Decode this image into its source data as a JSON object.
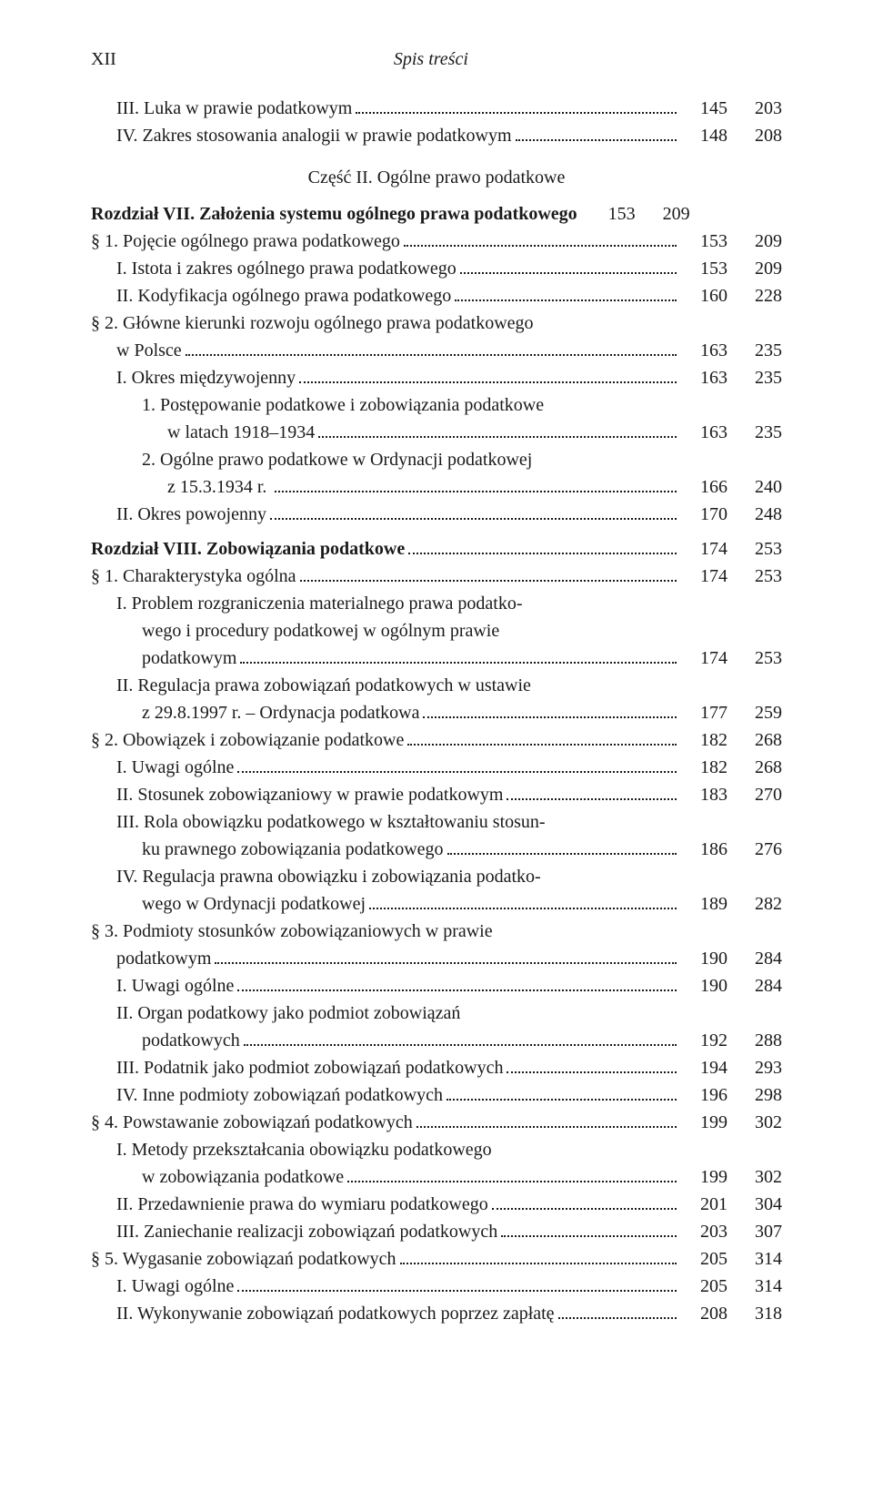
{
  "header": {
    "page_num": "XII",
    "running": "Spis treści"
  },
  "intro": [
    {
      "label": "III. Luka w prawie podatkowym",
      "a": "145",
      "b": "203",
      "indent": "indent-1"
    },
    {
      "label": "IV. Zakres stosowania analogii w prawie podatkowym",
      "a": "148",
      "b": "208",
      "indent": "indent-1"
    }
  ],
  "part_title": "Część II. Ogólne prawo podatkowe",
  "chapters": [
    {
      "heading": {
        "label": "Rozdział VII. Założenia systemu ogólnego prawa podatkowego",
        "a": "153",
        "b": "209"
      },
      "rows": [
        {
          "label": "§ 1. Pojęcie ogólnego prawa podatkowego",
          "a": "153",
          "b": "209",
          "indent": "indent-0",
          "dots": true
        },
        {
          "label": "I. Istota i zakres ogólnego prawa podatkowego",
          "a": "153",
          "b": "209",
          "indent": "indent-1",
          "dots": true
        },
        {
          "label": "II. Kodyfikacja ogólnego prawa podatkowego",
          "a": "160",
          "b": "228",
          "indent": "indent-1",
          "dots": true
        },
        {
          "label": "§ 2. Główne kierunki rozwoju ogólnego prawa podatkowego",
          "indent": "indent-0",
          "dots": false,
          "no_cols": true
        },
        {
          "label": "w Polsce",
          "a": "163",
          "b": "235",
          "indent": "cont-1",
          "dots": true
        },
        {
          "label": "I. Okres międzywojenny",
          "a": "163",
          "b": "235",
          "indent": "indent-1",
          "dots": true
        },
        {
          "label": "1. Postępowanie podatkowe i zobowiązania podatkowe",
          "indent": "indent-2",
          "dots": false,
          "no_cols": true
        },
        {
          "label": "w latach 1918–1934",
          "a": "163",
          "b": "235",
          "indent": "cont-3",
          "dots": true
        },
        {
          "label": "2. Ogólne prawo podatkowe w Ordynacji podatkowej",
          "indent": "indent-2",
          "dots": false,
          "no_cols": true
        },
        {
          "label": "z 15.3.1934 r. ",
          "a": "166",
          "b": "240",
          "indent": "cont-3",
          "dots": true
        },
        {
          "label": "II. Okres powojenny",
          "a": "170",
          "b": "248",
          "indent": "indent-1",
          "dots": true
        }
      ]
    },
    {
      "heading": {
        "label": "Rozdział VIII. Zobowiązania podatkowe",
        "a": "174",
        "b": "253",
        "dots": true
      },
      "rows": [
        {
          "label": "§ 1. Charakterystyka ogólna",
          "a": "174",
          "b": "253",
          "indent": "indent-0",
          "dots": true
        },
        {
          "label": "I. Problem rozgraniczenia materialnego prawa podatko-",
          "indent": "indent-1",
          "dots": false,
          "no_cols": true
        },
        {
          "label": "wego i procedury podatkowej w ogólnym prawie",
          "indent": "cont-2",
          "dots": false,
          "no_cols": true
        },
        {
          "label": "podatkowym",
          "a": "174",
          "b": "253",
          "indent": "cont-2",
          "dots": true
        },
        {
          "label": "II. Regulacja prawa zobowiązań podatkowych w ustawie",
          "indent": "indent-1",
          "dots": false,
          "no_cols": true
        },
        {
          "label": "z 29.8.1997 r. – Ordynacja podatkowa",
          "a": "177",
          "b": "259",
          "indent": "cont-2",
          "dots": true
        },
        {
          "label": "§ 2. Obowiązek i zobowiązanie podatkowe",
          "a": "182",
          "b": "268",
          "indent": "indent-0",
          "dots": true
        },
        {
          "label": "I. Uwagi ogólne",
          "a": "182",
          "b": "268",
          "indent": "indent-1",
          "dots": true
        },
        {
          "label": "II. Stosunek zobowiązaniowy w prawie podatkowym",
          "a": "183",
          "b": "270",
          "indent": "indent-1",
          "dots": true
        },
        {
          "label": "III. Rola obowiązku podatkowego w kształtowaniu stosun-",
          "indent": "indent-1",
          "dots": false,
          "no_cols": true
        },
        {
          "label": "ku prawnego zobowiązania podatkowego",
          "a": "186",
          "b": "276",
          "indent": "cont-2",
          "dots": true
        },
        {
          "label": "IV. Regulacja prawna obowiązku i zobowiązania podatko-",
          "indent": "indent-1",
          "dots": false,
          "no_cols": true
        },
        {
          "label": "wego w Ordynacji podatkowej",
          "a": "189",
          "b": "282",
          "indent": "cont-2",
          "dots": true
        },
        {
          "label": "§ 3. Podmioty stosunków zobowiązaniowych w prawie",
          "indent": "indent-0",
          "dots": false,
          "no_cols": true
        },
        {
          "label": "podatkowym",
          "a": "190",
          "b": "284",
          "indent": "cont-1",
          "dots": true
        },
        {
          "label": "I. Uwagi ogólne",
          "a": "190",
          "b": "284",
          "indent": "indent-1",
          "dots": true
        },
        {
          "label": "II. Organ podatkowy jako podmiot zobowiązań",
          "indent": "indent-1",
          "dots": false,
          "no_cols": true
        },
        {
          "label": "podatkowych",
          "a": "192",
          "b": "288",
          "indent": "cont-2",
          "dots": true
        },
        {
          "label": "III. Podatnik jako podmiot zobowiązań podatkowych",
          "a": "194",
          "b": "293",
          "indent": "indent-1",
          "dots": true
        },
        {
          "label": "IV. Inne podmioty zobowiązań podatkowych",
          "a": "196",
          "b": "298",
          "indent": "indent-1",
          "dots": true
        },
        {
          "label": "§ 4. Powstawanie zobowiązań podatkowych",
          "a": "199",
          "b": "302",
          "indent": "indent-0",
          "dots": true
        },
        {
          "label": "I. Metody przekształcania obowiązku podatkowego",
          "indent": "indent-1",
          "dots": false,
          "no_cols": true
        },
        {
          "label": "w zobowiązania podatkowe",
          "a": "199",
          "b": "302",
          "indent": "cont-2",
          "dots": true
        },
        {
          "label": "II. Przedawnienie prawa do wymiaru podatkowego",
          "a": "201",
          "b": "304",
          "indent": "indent-1",
          "dots": true
        },
        {
          "label": "III. Zaniechanie realizacji zobowiązań podatkowych",
          "a": "203",
          "b": "307",
          "indent": "indent-1",
          "dots": true
        },
        {
          "label": "§ 5. Wygasanie zobowiązań podatkowych",
          "a": "205",
          "b": "314",
          "indent": "indent-0",
          "dots": true
        },
        {
          "label": "I. Uwagi ogólne",
          "a": "205",
          "b": "314",
          "indent": "indent-1",
          "dots": true
        },
        {
          "label": "II. Wykonywanie zobowiązań podatkowych poprzez zapłatę",
          "a": "208",
          "b": "318",
          "indent": "indent-1",
          "dots": true
        }
      ]
    }
  ]
}
